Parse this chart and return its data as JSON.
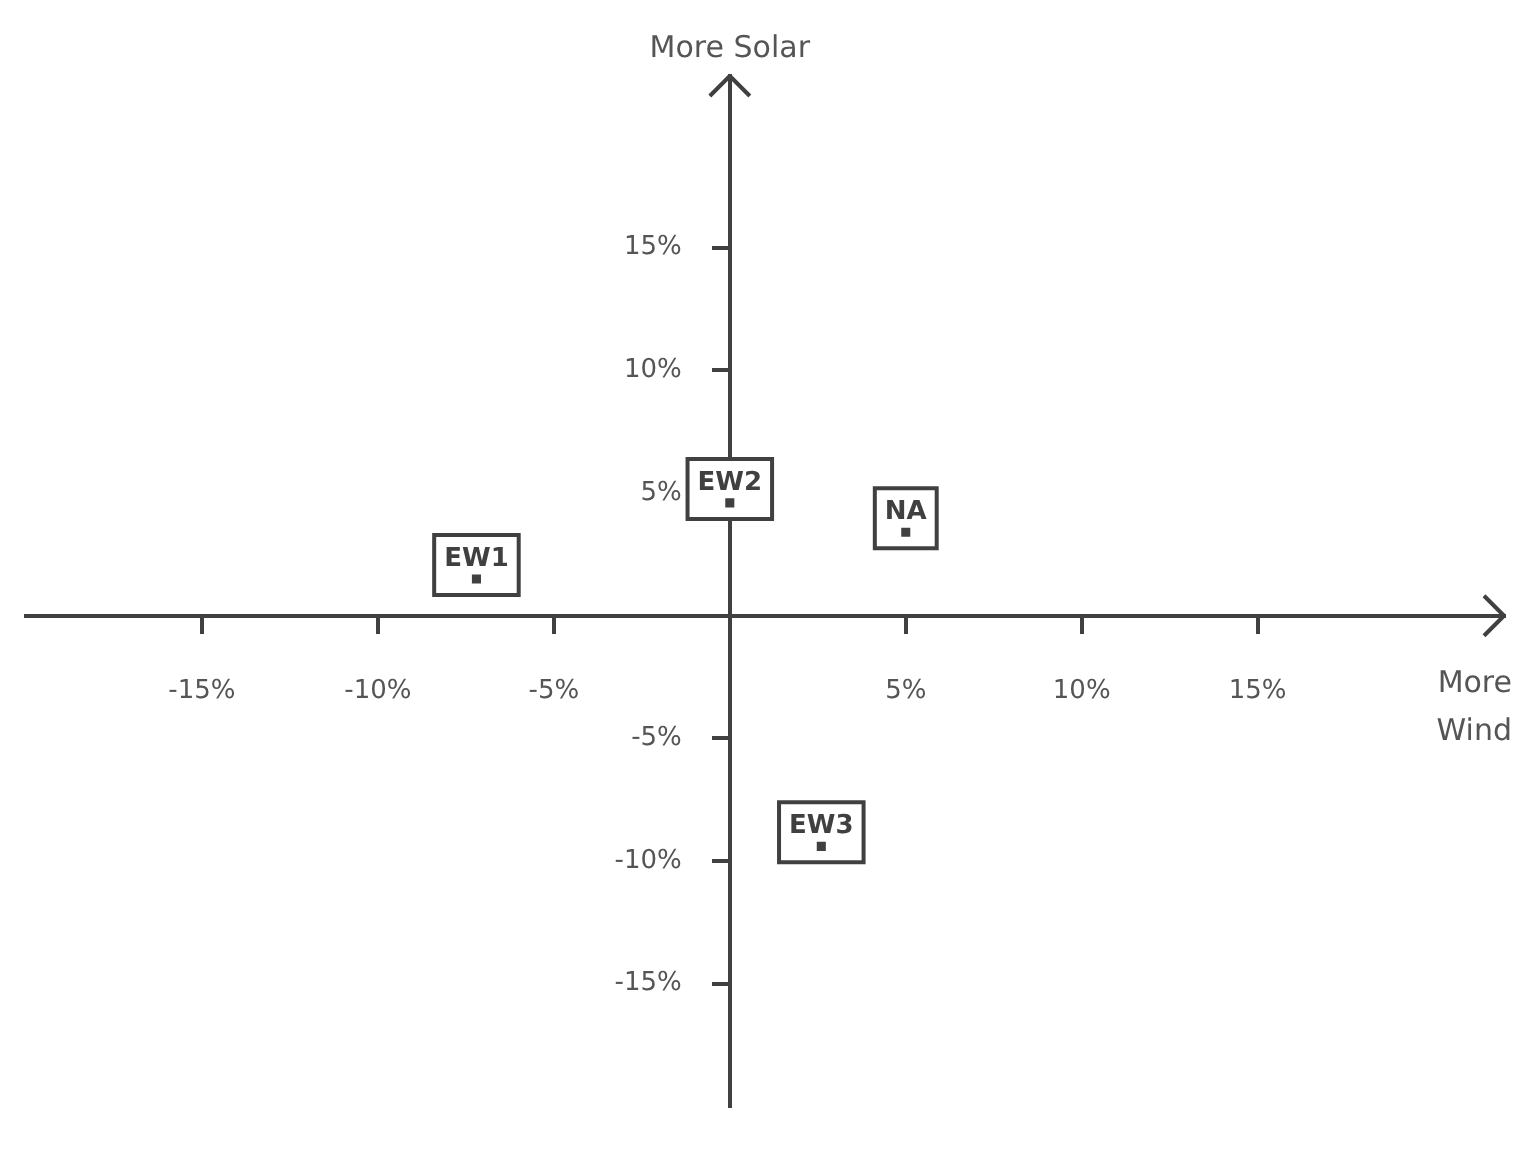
{
  "chart_data": {
    "type": "scatter",
    "xlabel": "More Wind",
    "ylabel": "More Solar",
    "xlim": [
      -20,
      22
    ],
    "ylim": [
      -20,
      22
    ],
    "xticks": [
      {
        "value": -15,
        "label": "-15%"
      },
      {
        "value": -10,
        "label": "-10%"
      },
      {
        "value": -5,
        "label": "-5%"
      },
      {
        "value": 5,
        "label": "5%"
      },
      {
        "value": 10,
        "label": "10%"
      },
      {
        "value": 15,
        "label": "15%"
      }
    ],
    "yticks": [
      {
        "value": -15,
        "label": "-15%"
      },
      {
        "value": -10,
        "label": "-10%"
      },
      {
        "value": -5,
        "label": "-5%"
      },
      {
        "value": 5,
        "label": "5%"
      },
      {
        "value": 10,
        "label": "10%"
      },
      {
        "value": 15,
        "label": "15%"
      }
    ],
    "grid": false,
    "legend": false,
    "series": [
      {
        "name": "EW1",
        "color": "#404040",
        "x": [
          -7.2
        ],
        "values": [
          1.5
        ]
      },
      {
        "name": "EW2",
        "color": "#404040",
        "x": [
          0
        ],
        "values": [
          4.6
        ]
      },
      {
        "name": "NA",
        "color": "#404040",
        "x": [
          5
        ],
        "values": [
          3.4
        ]
      },
      {
        "name": "EW3",
        "color": "#404040",
        "x": [
          2.6
        ],
        "values": [
          -9.4
        ]
      }
    ]
  }
}
